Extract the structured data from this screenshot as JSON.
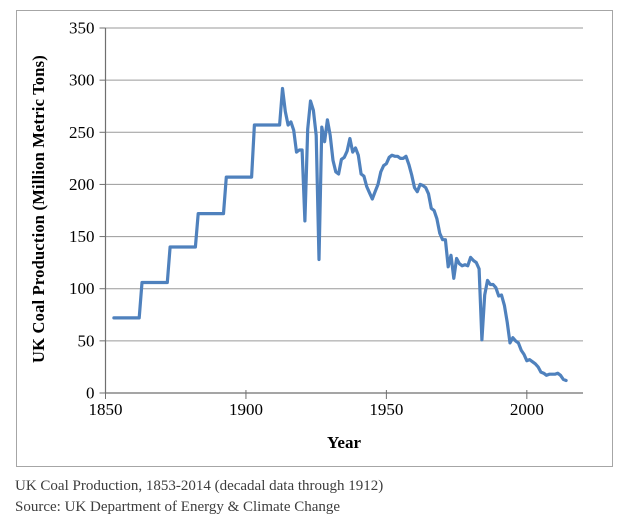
{
  "page": {
    "background": "#ffffff"
  },
  "figure": {
    "caption_line1": "UK Coal Production, 1853-2014 (decadal data through 1912)",
    "caption_line2": "Source: UK Department of Energy & Climate Change"
  },
  "chart_data": {
    "type": "line",
    "title": "",
    "xlabel": "Year",
    "ylabel": "UK Coal Production (Million Metric Tons)",
    "xlim": [
      1850,
      2020
    ],
    "ylim": [
      0,
      350
    ],
    "xticks": [
      1850,
      1900,
      1950,
      2000
    ],
    "yticks": [
      0,
      50,
      100,
      150,
      200,
      250,
      300,
      350
    ],
    "grid": "horizontal",
    "legend_position": "none",
    "colors": {
      "line": "#4F81BD",
      "grid": "#9a9a9a",
      "axis": "#6f6f6f",
      "frame": "#a6a6a6",
      "tick_label": "#000000",
      "caption": "#3d3d3d"
    },
    "series": [
      {
        "name": "UK coal production (million metric tons)",
        "points": [
          [
            1853,
            72
          ],
          [
            1862,
            72
          ],
          [
            1863,
            106
          ],
          [
            1872,
            106
          ],
          [
            1873,
            140
          ],
          [
            1882,
            140
          ],
          [
            1883,
            172
          ],
          [
            1892,
            172
          ],
          [
            1893,
            207
          ],
          [
            1902,
            207
          ],
          [
            1903,
            257
          ],
          [
            1912,
            257
          ],
          [
            1913,
            292
          ],
          [
            1914,
            270
          ],
          [
            1915,
            257
          ],
          [
            1916,
            260
          ],
          [
            1917,
            252
          ],
          [
            1918,
            231
          ],
          [
            1919,
            233
          ],
          [
            1920,
            233
          ],
          [
            1921,
            165
          ],
          [
            1922,
            253
          ],
          [
            1923,
            280
          ],
          [
            1924,
            271
          ],
          [
            1925,
            247
          ],
          [
            1926,
            128
          ],
          [
            1927,
            255
          ],
          [
            1928,
            241
          ],
          [
            1929,
            262
          ],
          [
            1930,
            247
          ],
          [
            1931,
            223
          ],
          [
            1932,
            212
          ],
          [
            1933,
            210
          ],
          [
            1934,
            224
          ],
          [
            1935,
            226
          ],
          [
            1936,
            232
          ],
          [
            1937,
            244
          ],
          [
            1938,
            231
          ],
          [
            1939,
            235
          ],
          [
            1940,
            228
          ],
          [
            1941,
            210
          ],
          [
            1942,
            208
          ],
          [
            1943,
            198
          ],
          [
            1944,
            192
          ],
          [
            1945,
            186
          ],
          [
            1946,
            193
          ],
          [
            1947,
            200
          ],
          [
            1948,
            212
          ],
          [
            1949,
            218
          ],
          [
            1950,
            220
          ],
          [
            1951,
            226
          ],
          [
            1952,
            228
          ],
          [
            1953,
            227
          ],
          [
            1954,
            227
          ],
          [
            1955,
            225
          ],
          [
            1956,
            225
          ],
          [
            1957,
            227
          ],
          [
            1958,
            219
          ],
          [
            1959,
            209
          ],
          [
            1960,
            197
          ],
          [
            1961,
            193
          ],
          [
            1962,
            200
          ],
          [
            1963,
            199
          ],
          [
            1964,
            197
          ],
          [
            1965,
            191
          ],
          [
            1966,
            177
          ],
          [
            1967,
            175
          ],
          [
            1968,
            167
          ],
          [
            1969,
            153
          ],
          [
            1970,
            147
          ],
          [
            1971,
            147
          ],
          [
            1972,
            121
          ],
          [
            1973,
            132
          ],
          [
            1974,
            110
          ],
          [
            1975,
            129
          ],
          [
            1976,
            124
          ],
          [
            1977,
            122
          ],
          [
            1978,
            123
          ],
          [
            1979,
            122
          ],
          [
            1980,
            130
          ],
          [
            1981,
            127
          ],
          [
            1982,
            125
          ],
          [
            1983,
            119
          ],
          [
            1984,
            51
          ],
          [
            1985,
            94
          ],
          [
            1986,
            108
          ],
          [
            1987,
            104
          ],
          [
            1988,
            104
          ],
          [
            1989,
            101
          ],
          [
            1990,
            93
          ],
          [
            1991,
            94
          ],
          [
            1992,
            84
          ],
          [
            1993,
            68
          ],
          [
            1994,
            48
          ],
          [
            1995,
            53
          ],
          [
            1996,
            50
          ],
          [
            1997,
            48
          ],
          [
            1998,
            41
          ],
          [
            1999,
            37
          ],
          [
            2000,
            31
          ],
          [
            2001,
            32
          ],
          [
            2002,
            30
          ],
          [
            2003,
            28
          ],
          [
            2004,
            25
          ],
          [
            2005,
            20
          ],
          [
            2006,
            19
          ],
          [
            2007,
            17
          ],
          [
            2008,
            18
          ],
          [
            2009,
            18
          ],
          [
            2010,
            18
          ],
          [
            2011,
            19
          ],
          [
            2012,
            17
          ],
          [
            2013,
            13
          ],
          [
            2014,
            12
          ]
        ]
      }
    ]
  }
}
